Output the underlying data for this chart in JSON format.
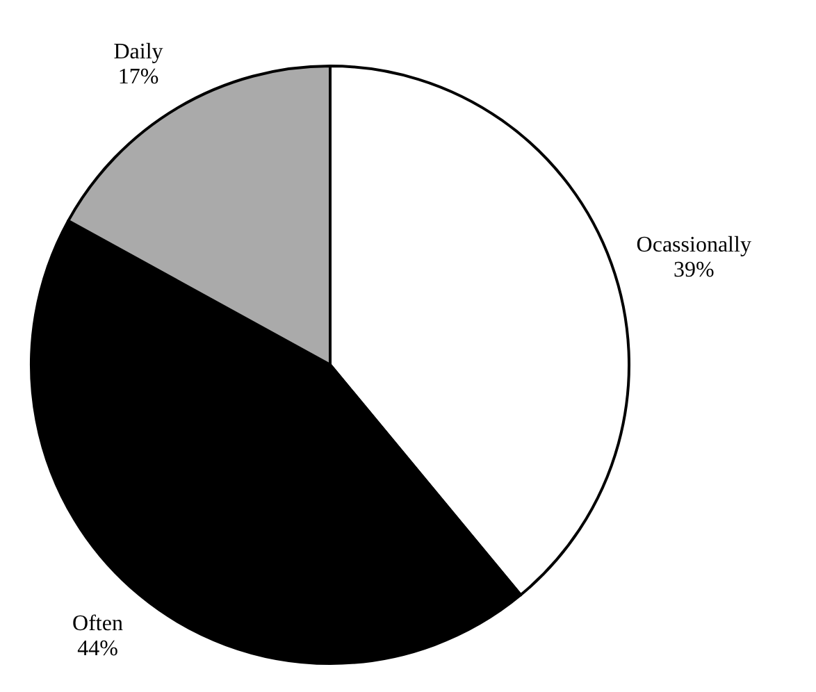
{
  "chart_data": {
    "type": "pie",
    "categories": [
      "Ocassionally",
      "Often",
      "Daily"
    ],
    "values": [
      39,
      44,
      17
    ],
    "colors": [
      "#ffffff",
      "#000000",
      "#aaaaaa"
    ],
    "value_labels": [
      "39%",
      "44%",
      "17%"
    ]
  }
}
